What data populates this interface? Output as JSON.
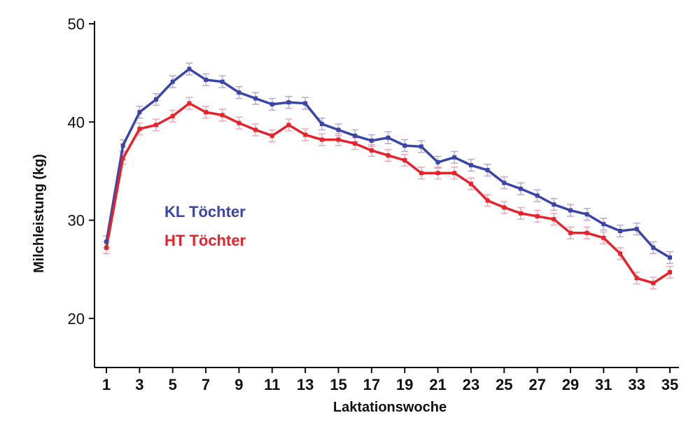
{
  "chart_data": {
    "type": "line",
    "xlabel": "Laktationswoche",
    "ylabel": "Milchleistung (kg)",
    "xlim": [
      1,
      35
    ],
    "ylim": [
      15,
      50
    ],
    "y_ticks": [
      20,
      30,
      40,
      50
    ],
    "x_ticks": [
      1,
      3,
      5,
      7,
      9,
      11,
      13,
      15,
      17,
      19,
      21,
      23,
      25,
      27,
      29,
      31,
      33,
      35
    ],
    "grid": false,
    "legend_placement": "center-left",
    "error_bars": true,
    "x": [
      1,
      2,
      3,
      4,
      5,
      6,
      7,
      8,
      9,
      10,
      11,
      12,
      13,
      14,
      15,
      16,
      17,
      18,
      19,
      20,
      21,
      22,
      23,
      24,
      25,
      26,
      27,
      28,
      29,
      30,
      31,
      32,
      33,
      34,
      35
    ],
    "series": [
      {
        "name": "KL Töchter",
        "color": "#3a45a8",
        "error_color": "#b8a8d8",
        "values": [
          27.8,
          37.6,
          41.0,
          42.3,
          44.1,
          45.4,
          44.3,
          44.1,
          43.0,
          42.4,
          41.8,
          42.0,
          41.9,
          39.8,
          39.2,
          38.6,
          38.1,
          38.4,
          37.6,
          37.5,
          35.9,
          36.4,
          35.6,
          35.1,
          33.8,
          33.2,
          32.5,
          31.6,
          31.0,
          30.6,
          29.6,
          28.9,
          29.1,
          27.2,
          26.2
        ]
      },
      {
        "name": "HT Töchter",
        "color": "#e8222a",
        "error_color": "#f0a8b4",
        "values": [
          27.2,
          36.3,
          39.3,
          39.7,
          40.6,
          41.9,
          41.0,
          40.7,
          39.9,
          39.2,
          38.6,
          39.7,
          38.7,
          38.2,
          38.2,
          37.8,
          37.1,
          36.6,
          36.1,
          34.8,
          34.8,
          34.8,
          33.7,
          32.0,
          31.3,
          30.7,
          30.4,
          30.1,
          28.7,
          28.7,
          28.2,
          26.6,
          24.1,
          23.6,
          24.7
        ]
      }
    ]
  }
}
